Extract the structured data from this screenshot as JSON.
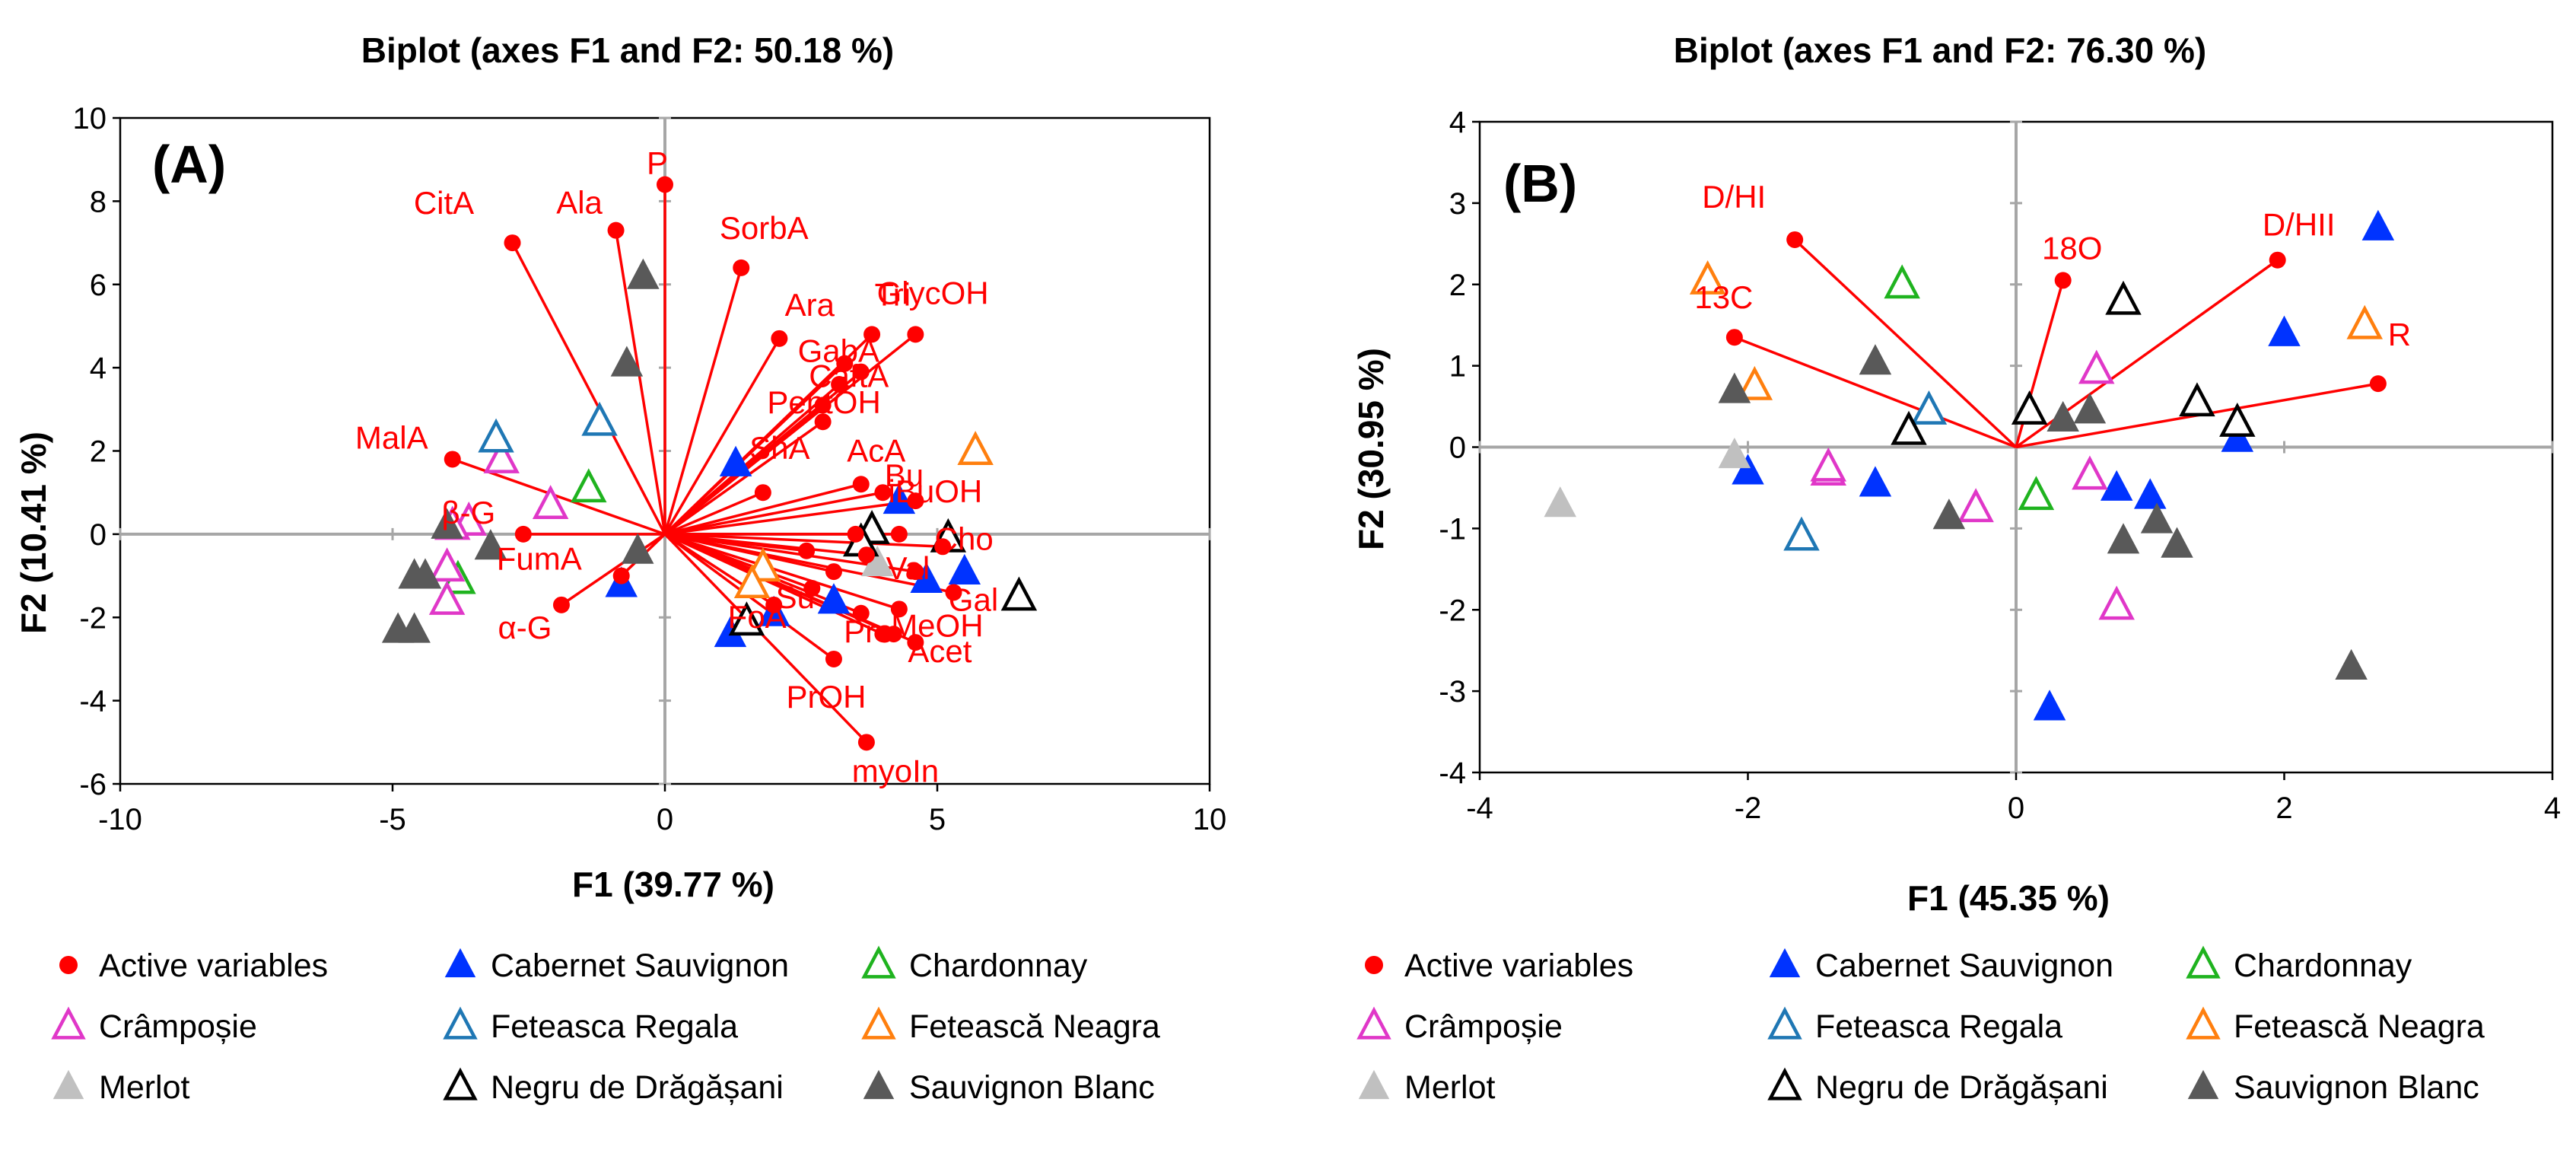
{
  "colors": {
    "active": "#ff0000",
    "Cabernet Sauvignon": "#0033ff",
    "Chardonnay": "#1fb31f",
    "Crâmpoșie": "#e037c8",
    "Feteasca Regala": "#1f77b4",
    "Fetească Neagra": "#ff7f0e",
    "Merlot": "#c0c0c0",
    "Negru de Drăgășani": "#000000",
    "Sauvignon Blanc": "#595959"
  },
  "chart_data": [
    {
      "type": "scatter",
      "panel": "(A)",
      "title": "Biplot (axes F1 and F2: 50.18 %)",
      "xlabel": "F1 (39.77 %)",
      "ylabel": "F2 (10.41 %)",
      "xlim": [
        -10,
        10
      ],
      "ylim": [
        -6,
        10
      ],
      "xticks": [
        -10,
        -5,
        0,
        5,
        10
      ],
      "yticks": [
        -6,
        -4,
        -2,
        0,
        2,
        4,
        6,
        8,
        10
      ],
      "variables": [
        {
          "label": "P",
          "x": 0.0,
          "y": 8.4
        },
        {
          "label": "Ala",
          "x": -0.9,
          "y": 7.3
        },
        {
          "label": "CitA",
          "x": -2.8,
          "y": 7.0
        },
        {
          "label": "SorbA",
          "x": 1.4,
          "y": 6.4
        },
        {
          "label": "Ara",
          "x": 2.1,
          "y": 4.7
        },
        {
          "label": "GlycOH",
          "x": 3.8,
          "y": 4.8
        },
        {
          "label": "Tri",
          "x": 4.6,
          "y": 4.8
        },
        {
          "label": "GabA",
          "x": 3.3,
          "y": 4.1
        },
        {
          "label": "CaftA",
          "x": 3.6,
          "y": 3.9
        },
        {
          "label": "PentOH",
          "x": 3.2,
          "y": 3.6
        },
        {
          "label": "",
          "x": 2.9,
          "y": 3.1
        },
        {
          "label": "",
          "x": 2.9,
          "y": 2.7
        },
        {
          "label": "ShA",
          "x": 1.8,
          "y": 1.0
        },
        {
          "label": "AcA",
          "x": 3.6,
          "y": 1.2
        },
        {
          "label": "Bu",
          "x": 4.0,
          "y": 1.0
        },
        {
          "label": "iBuOH",
          "x": 4.6,
          "y": 0.8
        },
        {
          "label": "MalA",
          "x": -3.9,
          "y": 1.8
        },
        {
          "label": "β-G",
          "x": -2.6,
          "y": 0.0
        },
        {
          "label": "",
          "x": 3.5,
          "y": 0.0
        },
        {
          "label": "",
          "x": 3.7,
          "y": -0.5
        },
        {
          "label": "",
          "x": 4.3,
          "y": 0.0
        },
        {
          "label": "Cho",
          "x": 5.1,
          "y": -0.3
        },
        {
          "label": "",
          "x": 2.6,
          "y": -0.4
        },
        {
          "label": "",
          "x": 3.1,
          "y": -0.9
        },
        {
          "label": "Val",
          "x": 4.6,
          "y": -0.9
        },
        {
          "label": "Gal",
          "x": 5.3,
          "y": -1.4
        },
        {
          "label": "FumA",
          "x": -0.8,
          "y": -1.0
        },
        {
          "label": "α-G",
          "x": -1.9,
          "y": -1.7
        },
        {
          "label": "Su",
          "x": 2.7,
          "y": -1.3
        },
        {
          "label": "FoA",
          "x": 2.0,
          "y": -1.7
        },
        {
          "label": "Pro",
          "x": 3.6,
          "y": -1.9
        },
        {
          "label": "MeOH",
          "x": 4.3,
          "y": -1.8
        },
        {
          "label": "",
          "x": 4.0,
          "y": -2.4
        },
        {
          "label": "",
          "x": 4.2,
          "y": -2.4
        },
        {
          "label": "Acet",
          "x": 4.6,
          "y": -2.6
        },
        {
          "label": "PrOH",
          "x": 3.1,
          "y": -3.0
        },
        {
          "label": "myoIn",
          "x": 3.7,
          "y": -5.0
        }
      ],
      "observations": [
        {
          "variety": "Cabernet Sauvignon",
          "x": 1.3,
          "y": 1.7
        },
        {
          "variety": "Cabernet Sauvignon",
          "x": 4.3,
          "y": 0.8
        },
        {
          "variety": "Cabernet Sauvignon",
          "x": -0.8,
          "y": -1.2
        },
        {
          "variety": "Cabernet Sauvignon",
          "x": 1.2,
          "y": -2.4
        },
        {
          "variety": "Cabernet Sauvignon",
          "x": 2.0,
          "y": -1.9
        },
        {
          "variety": "Cabernet Sauvignon",
          "x": 3.1,
          "y": -1.6
        },
        {
          "variety": "Cabernet Sauvignon",
          "x": 4.8,
          "y": -1.1
        },
        {
          "variety": "Cabernet Sauvignon",
          "x": 5.5,
          "y": -0.9
        },
        {
          "variety": "Chardonnay",
          "x": -1.4,
          "y": 1.1
        },
        {
          "variety": "Chardonnay",
          "x": -3.8,
          "y": -1.1
        },
        {
          "variety": "Crâmpoșie",
          "x": -3.0,
          "y": 1.8
        },
        {
          "variety": "Crâmpoșie",
          "x": -2.1,
          "y": 0.7
        },
        {
          "variety": "Crâmpoșie",
          "x": -3.6,
          "y": 0.3
        },
        {
          "variety": "Crâmpoșie",
          "x": -3.9,
          "y": 0.2
        },
        {
          "variety": "Crâmpoșie",
          "x": -4.0,
          "y": -0.8
        },
        {
          "variety": "Crâmpoșie",
          "x": -4.0,
          "y": -1.6
        },
        {
          "variety": "Feteasca Regala",
          "x": -3.1,
          "y": 2.3
        },
        {
          "variety": "Feteasca Regala",
          "x": -1.2,
          "y": 2.7
        },
        {
          "variety": "Fetească Neagra",
          "x": 5.7,
          "y": 2.0
        },
        {
          "variety": "Fetească Neagra",
          "x": 1.8,
          "y": -0.8
        },
        {
          "variety": "Fetească Neagra",
          "x": 1.6,
          "y": -1.2
        },
        {
          "variety": "Merlot",
          "x": 3.9,
          "y": -0.7
        },
        {
          "variety": "Negru de Drăgășani",
          "x": 3.8,
          "y": 0.1
        },
        {
          "variety": "Negru de Drăgășani",
          "x": 3.6,
          "y": -0.2
        },
        {
          "variety": "Negru de Drăgășani",
          "x": 5.2,
          "y": -0.1
        },
        {
          "variety": "Negru de Drăgășani",
          "x": 6.5,
          "y": -1.5
        },
        {
          "variety": "Negru de Drăgășani",
          "x": 1.5,
          "y": -2.1
        },
        {
          "variety": "Sauvignon Blanc",
          "x": -0.4,
          "y": 6.2
        },
        {
          "variety": "Sauvignon Blanc",
          "x": -0.7,
          "y": 4.1
        },
        {
          "variety": "Sauvignon Blanc",
          "x": -4.0,
          "y": 0.2
        },
        {
          "variety": "Sauvignon Blanc",
          "x": -3.2,
          "y": -0.3
        },
        {
          "variety": "Sauvignon Blanc",
          "x": -0.5,
          "y": -0.4
        },
        {
          "variety": "Sauvignon Blanc",
          "x": -4.4,
          "y": -1.0
        },
        {
          "variety": "Sauvignon Blanc",
          "x": -4.6,
          "y": -1.0
        },
        {
          "variety": "Sauvignon Blanc",
          "x": -4.9,
          "y": -2.3
        },
        {
          "variety": "Sauvignon Blanc",
          "x": -4.6,
          "y": -2.3
        }
      ]
    },
    {
      "type": "scatter",
      "panel": "(B)",
      "title": "Biplot (axes F1 and F2: 76.30 %)",
      "xlabel": "F1 (45.35 %)",
      "ylabel": "F2 (30.95 %)",
      "xlim": [
        -4,
        4
      ],
      "ylim": [
        -4,
        4
      ],
      "xticks": [
        -4,
        -2,
        0,
        2,
        4
      ],
      "yticks": [
        -4,
        -3,
        -2,
        -1,
        0,
        1,
        2,
        3,
        4
      ],
      "variables": [
        {
          "label": "D/HI",
          "x": -1.65,
          "y": 2.55
        },
        {
          "label": "18O",
          "x": 0.35,
          "y": 2.05
        },
        {
          "label": "D/HII",
          "x": 1.95,
          "y": 2.3
        },
        {
          "label": "13C",
          "x": -2.1,
          "y": 1.35
        },
        {
          "label": "R",
          "x": 2.7,
          "y": 0.78
        }
      ],
      "observations": [
        {
          "variety": "Cabernet Sauvignon",
          "x": 2.7,
          "y": 2.7
        },
        {
          "variety": "Cabernet Sauvignon",
          "x": 2.0,
          "y": 1.4
        },
        {
          "variety": "Cabernet Sauvignon",
          "x": 1.65,
          "y": 0.1
        },
        {
          "variety": "Cabernet Sauvignon",
          "x": -2.0,
          "y": -0.3
        },
        {
          "variety": "Cabernet Sauvignon",
          "x": -1.05,
          "y": -0.45
        },
        {
          "variety": "Cabernet Sauvignon",
          "x": 0.75,
          "y": -0.5
        },
        {
          "variety": "Cabernet Sauvignon",
          "x": 1.0,
          "y": -0.6
        },
        {
          "variety": "Cabernet Sauvignon",
          "x": 0.25,
          "y": -3.2
        },
        {
          "variety": "Chardonnay",
          "x": -0.85,
          "y": 2.0
        },
        {
          "variety": "Chardonnay",
          "x": 0.15,
          "y": -0.6
        },
        {
          "variety": "Crâmpoșie",
          "x": 0.6,
          "y": 0.95
        },
        {
          "variety": "Crâmpoșie",
          "x": 0.55,
          "y": -0.35
        },
        {
          "variety": "Crâmpoșie",
          "x": -1.4,
          "y": -0.3
        },
        {
          "variety": "Crâmpoșie",
          "x": -1.4,
          "y": -0.25
        },
        {
          "variety": "Crâmpoșie",
          "x": -0.3,
          "y": -0.75
        },
        {
          "variety": "Crâmpoșie",
          "x": 0.75,
          "y": -1.95
        },
        {
          "variety": "Feteasca Regala",
          "x": -0.65,
          "y": 0.45
        },
        {
          "variety": "Feteasca Regala",
          "x": -1.6,
          "y": -1.1
        },
        {
          "variety": "Fetească Neagra",
          "x": -2.3,
          "y": 2.05
        },
        {
          "variety": "Fetească Neagra",
          "x": -1.95,
          "y": 0.75
        },
        {
          "variety": "Fetească Neagra",
          "x": 2.6,
          "y": 1.5
        },
        {
          "variety": "Merlot",
          "x": -3.4,
          "y": -0.7
        },
        {
          "variety": "Merlot",
          "x": -2.1,
          "y": -0.1
        },
        {
          "variety": "Negru de Drăgășani",
          "x": 0.8,
          "y": 1.8
        },
        {
          "variety": "Negru de Drăgășani",
          "x": 0.1,
          "y": 0.45
        },
        {
          "variety": "Negru de Drăgășani",
          "x": -0.8,
          "y": 0.2
        },
        {
          "variety": "Negru de Drăgășani",
          "x": 1.35,
          "y": 0.55
        },
        {
          "variety": "Negru de Drăgășani",
          "x": 1.65,
          "y": 0.3
        },
        {
          "variety": "Sauvignon Blanc",
          "x": -2.1,
          "y": 0.7
        },
        {
          "variety": "Sauvignon Blanc",
          "x": -1.05,
          "y": 1.05
        },
        {
          "variety": "Sauvignon Blanc",
          "x": 0.35,
          "y": 0.35
        },
        {
          "variety": "Sauvignon Blanc",
          "x": 0.55,
          "y": 0.45
        },
        {
          "variety": "Sauvignon Blanc",
          "x": -0.5,
          "y": -0.85
        },
        {
          "variety": "Sauvignon Blanc",
          "x": 0.8,
          "y": -1.15
        },
        {
          "variety": "Sauvignon Blanc",
          "x": 1.05,
          "y": -0.9
        },
        {
          "variety": "Sauvignon Blanc",
          "x": 1.2,
          "y": -1.2
        },
        {
          "variety": "Sauvignon Blanc",
          "x": 2.5,
          "y": -2.7
        }
      ]
    }
  ],
  "legend": [
    {
      "label": "Active variables",
      "marker": "circle",
      "filled": true,
      "colorKey": "active"
    },
    {
      "label": "Cabernet Sauvignon",
      "marker": "triangle",
      "filled": true,
      "colorKey": "Cabernet Sauvignon"
    },
    {
      "label": "Chardonnay",
      "marker": "triangle",
      "filled": false,
      "colorKey": "Chardonnay"
    },
    {
      "label": "Crâmpoșie",
      "marker": "triangle",
      "filled": false,
      "colorKey": "Crâmpoșie"
    },
    {
      "label": "Feteasca Regala",
      "marker": "triangle",
      "filled": false,
      "colorKey": "Feteasca Regala"
    },
    {
      "label": "Fetească Neagra",
      "marker": "triangle",
      "filled": false,
      "colorKey": "Fetească Neagra"
    },
    {
      "label": "Merlot",
      "marker": "triangle",
      "filled": true,
      "colorKey": "Merlot"
    },
    {
      "label": "Negru de Drăgășani",
      "marker": "triangle",
      "filled": false,
      "colorKey": "Negru de Drăgășani"
    },
    {
      "label": "Sauvignon Blanc",
      "marker": "triangle",
      "filled": true,
      "colorKey": "Sauvignon Blanc"
    }
  ]
}
